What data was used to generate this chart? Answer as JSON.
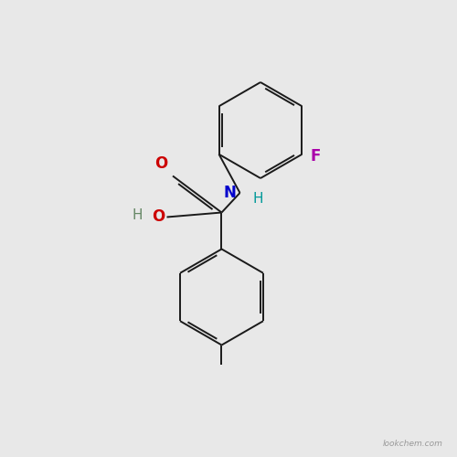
{
  "background_color": "#e8e8e8",
  "bond_color": "#1a1a1a",
  "atom_colors": {
    "O": "#cc0000",
    "N": "#0000cc",
    "F": "#aa00aa",
    "H_on_N": "#009999",
    "H_on_O": "#668866"
  },
  "figsize": [
    5.0,
    5.0
  ],
  "dpi": 100,
  "watermark": "lookchem.com"
}
